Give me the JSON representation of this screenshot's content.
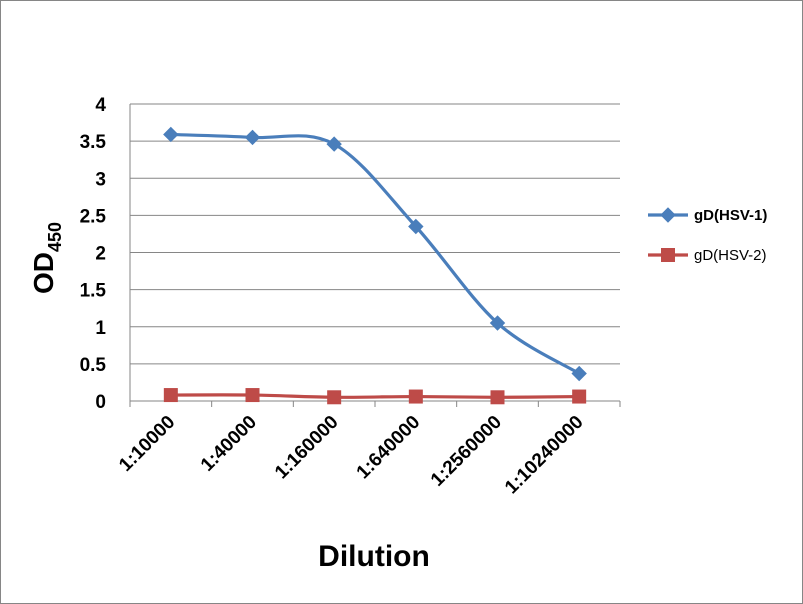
{
  "chart_data": {
    "type": "line",
    "title": "",
    "xlabel": "Dilution",
    "ylabel_main": "OD",
    "ylabel_sub": "450",
    "categories": [
      "1:10000",
      "1:40000",
      "1:160000",
      "1:640000",
      "1:2560000",
      "1:10240000"
    ],
    "ylim": [
      0,
      4
    ],
    "yticks": [
      "0",
      "0.5",
      "1",
      "1.5",
      "2",
      "2.5",
      "3",
      "3.5",
      "4"
    ],
    "grid": true,
    "legend_position": "right",
    "series": [
      {
        "name": "gD(HSV-1)",
        "color": "#4a7ebb",
        "marker": "diamond",
        "values": [
          3.59,
          3.55,
          3.46,
          2.35,
          1.05,
          0.37
        ]
      },
      {
        "name": "gD(HSV-2)",
        "color": "#be4b48",
        "marker": "square",
        "values": [
          0.08,
          0.08,
          0.05,
          0.06,
          0.05,
          0.06
        ]
      }
    ]
  }
}
